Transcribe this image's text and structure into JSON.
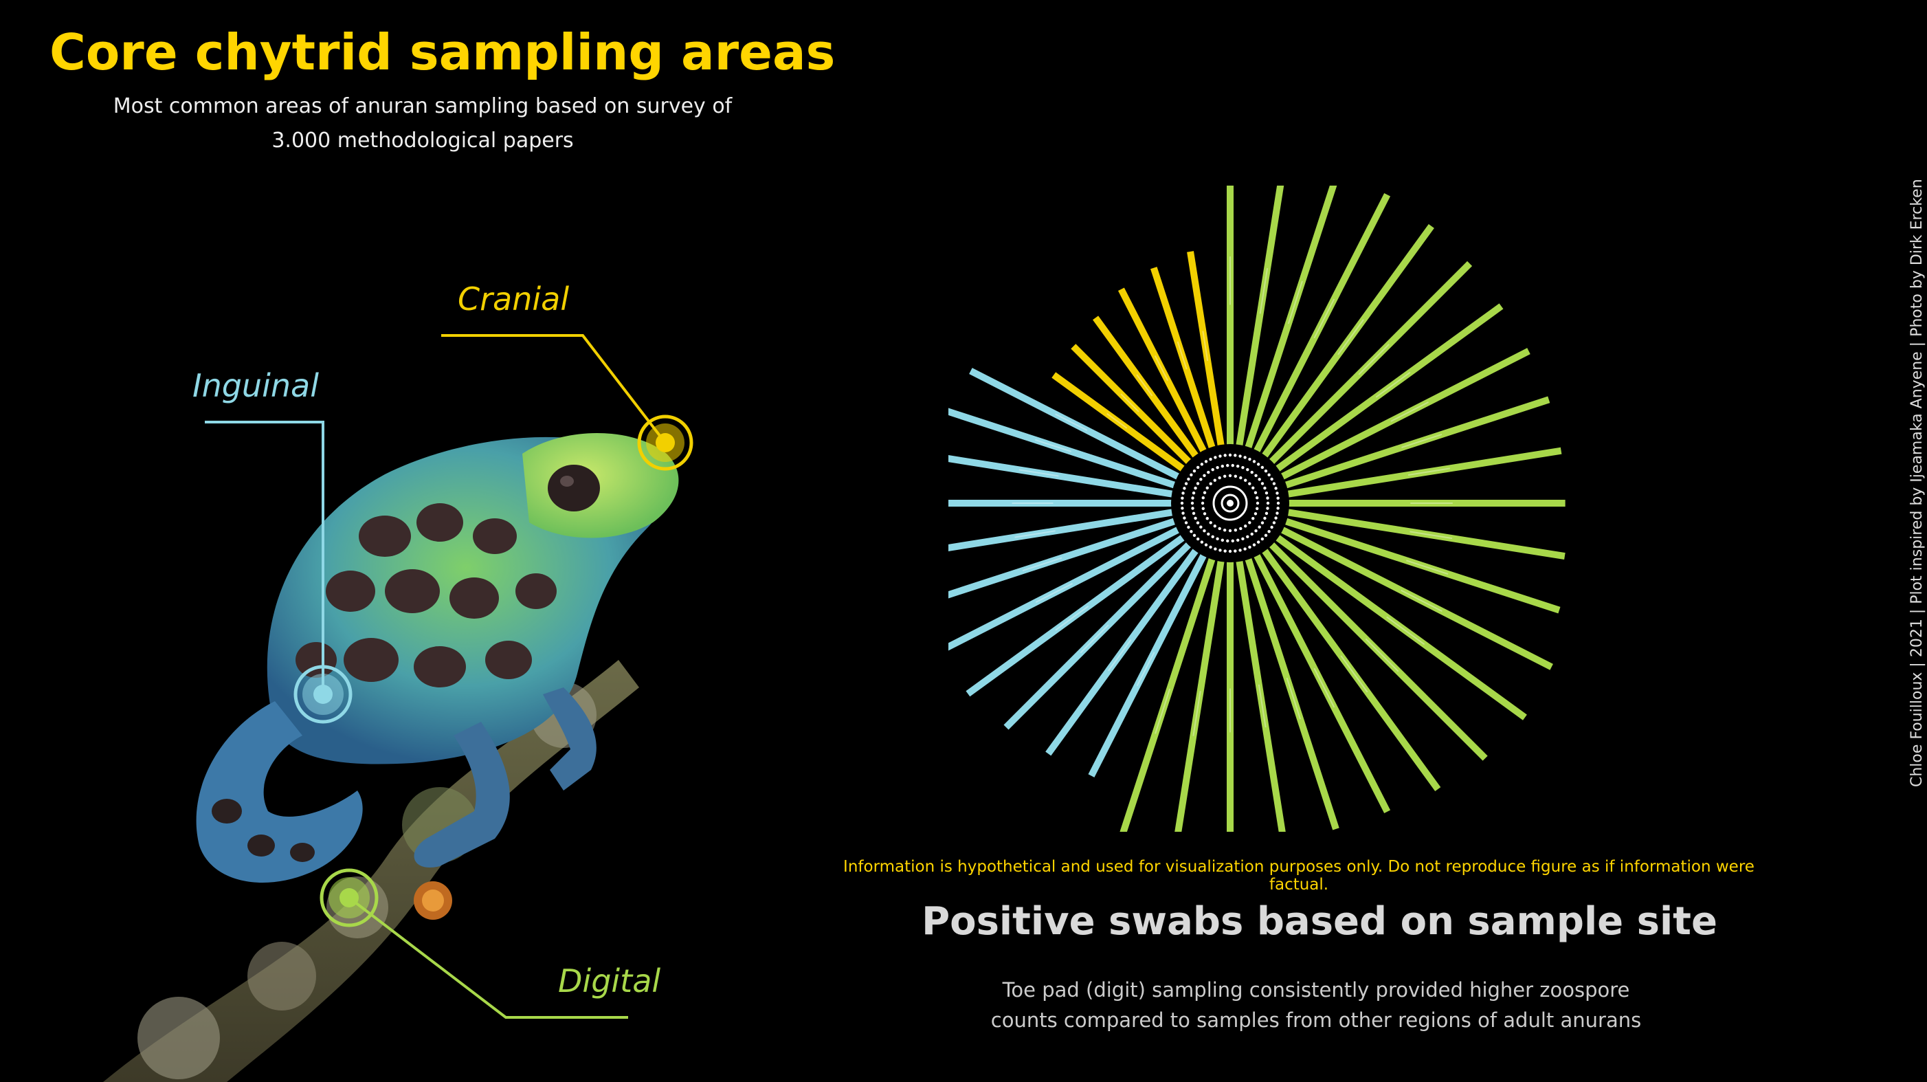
{
  "colors": {
    "cranial": "#f2d000",
    "inguinal": "#8fd8e6",
    "digital": "#a8d84a",
    "title": "#ffd500",
    "disclaimer": "#ffd500",
    "background": "#000000"
  },
  "header": {
    "title": "Core chytrid sampling areas",
    "subtitle_line1": "Most common areas of anuran sampling based on survey of",
    "subtitle_line2": "3.000 methodological papers"
  },
  "frog_callouts": {
    "cranial": "Cranial",
    "inguinal": "Inguinal",
    "digital": "Digital"
  },
  "disclaimer": "Information is hypothetical and used for visualization purposes only. Do not reproduce figure as if information were factual.",
  "chart_heading": "Positive swabs based on sample site",
  "chart_caption_line1": "Toe pad (digit) sampling consistently provided higher zoospore",
  "chart_caption_line2": "counts compared to samples from other regions of adult anurans",
  "credits": "Chloe Fouilloux | 2021 | Plot inspired by Ijeamaka Anyene | Photo by Dirk Ercken",
  "chart_data": {
    "type": "radial bar",
    "grid": false,
    "legend": "none",
    "series": [
      {
        "group": "digital",
        "values": [
          0.88,
          0.84,
          0.82,
          0.8,
          0.79,
          0.78,
          0.77,
          0.77,
          0.77,
          0.77,
          0.77,
          0.78,
          0.8,
          0.84,
          0.85,
          0.84,
          0.82,
          0.8,
          0.79,
          0.79,
          0.8,
          0.83,
          0.86
        ]
      },
      {
        "group": "inguinal",
        "values": [
          0.69,
          0.7,
          0.72,
          0.74,
          0.75,
          0.75,
          0.75,
          0.75,
          0.73,
          0.69,
          0.65
        ]
      },
      {
        "group": "cranial",
        "values": [
          0.45,
          0.46,
          0.48,
          0.51,
          0.53,
          0.55
        ]
      }
    ]
  }
}
